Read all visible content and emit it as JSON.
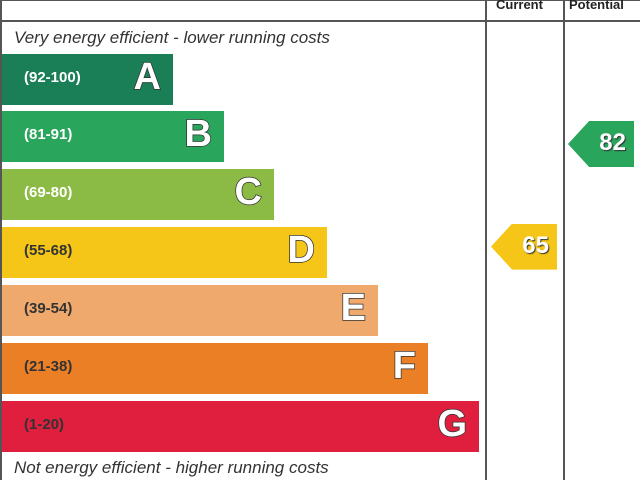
{
  "chart_data": {
    "type": "bar",
    "columns": [
      "Current",
      "Potential"
    ],
    "top_note": "Very energy efficient - lower running costs",
    "bottom_note": "Not energy efficient - higher running costs",
    "bands": [
      {
        "letter": "A",
        "range": "(92-100)",
        "min": 92,
        "max": 100,
        "color": "#1a7f57",
        "text_color": "#ffffff"
      },
      {
        "letter": "B",
        "range": "(81-91)",
        "min": 81,
        "max": 91,
        "color": "#2aa55c",
        "text_color": "#ffffff"
      },
      {
        "letter": "C",
        "range": "(69-80)",
        "min": 69,
        "max": 80,
        "color": "#8cbb45",
        "text_color": "#ffffff"
      },
      {
        "letter": "D",
        "range": "(55-68)",
        "min": 55,
        "max": 68,
        "color": "#f5c518",
        "text_color": "#333333"
      },
      {
        "letter": "E",
        "range": "(39-54)",
        "min": 39,
        "max": 54,
        "color": "#f0a96c",
        "text_color": "#333333"
      },
      {
        "letter": "F",
        "range": "(21-38)",
        "min": 21,
        "max": 38,
        "color": "#ea7f25",
        "text_color": "#333333"
      },
      {
        "letter": "G",
        "range": "(1-20)",
        "min": 1,
        "max": 20,
        "color": "#df1f3d",
        "text_color": "#333333"
      }
    ],
    "current": {
      "value": "65",
      "band": "D",
      "color": "#f5c518"
    },
    "potential": {
      "value": "82",
      "band": "B",
      "color": "#2aa55c"
    }
  }
}
